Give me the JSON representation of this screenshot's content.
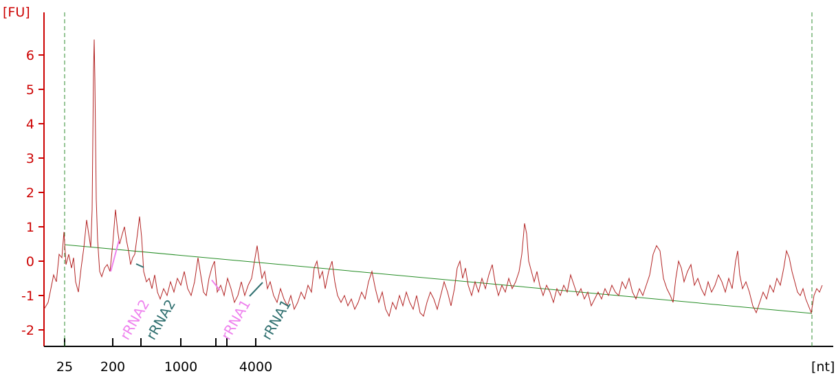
{
  "chart_data": {
    "type": "line",
    "y_unit_label": "[FU]",
    "x_unit_label": "[nt]",
    "yticks": [
      -2,
      -1,
      0,
      1,
      2,
      3,
      4,
      5,
      6
    ],
    "xticks": [
      {
        "x": 25,
        "label": "25"
      },
      {
        "x": 200,
        "label": "200"
      },
      {
        "x": 1000,
        "label": "1000"
      },
      {
        "x": 4000,
        "label": "4000"
      }
    ],
    "xtick_unlabeled": [
      500,
      2000,
      2500
    ],
    "ylim": [
      -2.5,
      7.2
    ],
    "colors": {
      "trace": "#b22222",
      "axis_y": "#cc0000",
      "axis_x": "#000000",
      "baseline": "#228b22",
      "marker_lines": "#2e8b2e",
      "rrna_pink": "#ee82ee",
      "rrna_teal": "#2f6f6f"
    },
    "markers": [
      {
        "x": 25,
        "label": "25-nt marker"
      },
      {
        "x": 17000,
        "label": "end marker"
      }
    ],
    "baseline": {
      "start": [
        25,
        0.48
      ],
      "end": [
        17000,
        -1.52
      ]
    },
    "annotations": [
      {
        "label": "rRNA2",
        "color": "pink",
        "x": 200
      },
      {
        "label": "rRNA2",
        "color": "teal",
        "x": 500
      },
      {
        "label": "rRNA1",
        "color": "pink",
        "x": 2000
      },
      {
        "label": "rRNA1",
        "color": "teal",
        "x": 2500
      }
    ],
    "series": [
      {
        "points": [
          [
            64,
            -1.4
          ],
          [
            70,
            -1.2
          ],
          [
            74,
            -0.8
          ],
          [
            78,
            -0.4
          ],
          [
            82,
            -0.6
          ],
          [
            86,
            0.2
          ],
          [
            90,
            0.1
          ],
          [
            93,
            0.85
          ],
          [
            96,
            -0.1
          ],
          [
            100,
            0.2
          ],
          [
            104,
            -0.2
          ],
          [
            107,
            0.1
          ],
          [
            110,
            -0.6
          ],
          [
            114,
            -0.9
          ],
          [
            118,
            -0.2
          ],
          [
            122,
            0.4
          ],
          [
            126,
            1.2
          ],
          [
            129,
            0.8
          ],
          [
            132,
            0.4
          ],
          [
            134,
            1.5
          ],
          [
            136,
            5.5
          ],
          [
            137,
            6.45
          ],
          [
            138,
            5.3
          ],
          [
            140,
            1.8
          ],
          [
            142,
            0.6
          ],
          [
            145,
            -0.3
          ],
          [
            148,
            -0.45
          ],
          [
            152,
            -0.2
          ],
          [
            156,
            -0.1
          ],
          [
            160,
            -0.3
          ],
          [
            164,
            0.5
          ],
          [
            168,
            1.5
          ],
          [
            171,
            0.9
          ],
          [
            174,
            0.5
          ],
          [
            178,
            0.8
          ],
          [
            181,
            1.0
          ],
          [
            184,
            0.6
          ],
          [
            187,
            0.3
          ],
          [
            190,
            -0.1
          ],
          [
            193,
            0.1
          ],
          [
            196,
            0.2
          ],
          [
            200,
            0.8
          ],
          [
            203,
            1.3
          ],
          [
            206,
            0.7
          ],
          [
            209,
            -0.3
          ],
          [
            213,
            -0.6
          ],
          [
            217,
            -0.5
          ],
          [
            221,
            -0.8
          ],
          [
            225,
            -0.4
          ],
          [
            229,
            -0.9
          ],
          [
            233,
            -1.1
          ],
          [
            238,
            -0.8
          ],
          [
            243,
            -1.0
          ],
          [
            248,
            -0.6
          ],
          [
            253,
            -0.9
          ],
          [
            258,
            -0.5
          ],
          [
            263,
            -0.7
          ],
          [
            268,
            -0.3
          ],
          [
            273,
            -0.8
          ],
          [
            278,
            -1.0
          ],
          [
            283,
            -0.6
          ],
          [
            288,
            0.1
          ],
          [
            292,
            -0.4
          ],
          [
            296,
            -0.9
          ],
          [
            300,
            -1.0
          ],
          [
            304,
            -0.5
          ],
          [
            308,
            -0.2
          ],
          [
            312,
            0.0
          ],
          [
            316,
            -0.9
          ],
          [
            321,
            -0.7
          ],
          [
            326,
            -1.0
          ],
          [
            331,
            -0.5
          ],
          [
            336,
            -0.8
          ],
          [
            341,
            -1.2
          ],
          [
            346,
            -1.0
          ],
          [
            351,
            -0.6
          ],
          [
            356,
            -1.0
          ],
          [
            361,
            -0.7
          ],
          [
            366,
            -0.5
          ],
          [
            371,
            0.1
          ],
          [
            374,
            0.45
          ],
          [
            377,
            0.0
          ],
          [
            381,
            -0.5
          ],
          [
            385,
            -0.3
          ],
          [
            389,
            -0.8
          ],
          [
            393,
            -0.6
          ],
          [
            398,
            -1.0
          ],
          [
            403,
            -1.2
          ],
          [
            408,
            -0.8
          ],
          [
            413,
            -1.1
          ],
          [
            418,
            -1.3
          ],
          [
            423,
            -1.0
          ],
          [
            428,
            -1.4
          ],
          [
            433,
            -1.2
          ],
          [
            438,
            -0.9
          ],
          [
            443,
            -1.1
          ],
          [
            448,
            -0.7
          ],
          [
            453,
            -0.9
          ],
          [
            457,
            -0.2
          ],
          [
            461,
            0.0
          ],
          [
            465,
            -0.5
          ],
          [
            469,
            -0.3
          ],
          [
            473,
            -0.8
          ],
          [
            478,
            -0.3
          ],
          [
            483,
            0.0
          ],
          [
            487,
            -0.6
          ],
          [
            491,
            -1.0
          ],
          [
            496,
            -1.2
          ],
          [
            501,
            -1.0
          ],
          [
            506,
            -1.3
          ],
          [
            511,
            -1.1
          ],
          [
            516,
            -1.4
          ],
          [
            521,
            -1.2
          ],
          [
            526,
            -0.9
          ],
          [
            531,
            -1.1
          ],
          [
            536,
            -0.6
          ],
          [
            541,
            -0.3
          ],
          [
            546,
            -0.8
          ],
          [
            551,
            -1.2
          ],
          [
            556,
            -0.9
          ],
          [
            561,
            -1.4
          ],
          [
            566,
            -1.6
          ],
          [
            571,
            -1.2
          ],
          [
            576,
            -1.4
          ],
          [
            581,
            -1.0
          ],
          [
            586,
            -1.3
          ],
          [
            591,
            -0.9
          ],
          [
            596,
            -1.2
          ],
          [
            601,
            -1.4
          ],
          [
            606,
            -1.0
          ],
          [
            611,
            -1.5
          ],
          [
            616,
            -1.6
          ],
          [
            621,
            -1.2
          ],
          [
            626,
            -0.9
          ],
          [
            631,
            -1.1
          ],
          [
            636,
            -1.4
          ],
          [
            641,
            -1.0
          ],
          [
            646,
            -0.6
          ],
          [
            651,
            -0.9
          ],
          [
            656,
            -1.3
          ],
          [
            661,
            -0.8
          ],
          [
            665,
            -0.2
          ],
          [
            669,
            0.0
          ],
          [
            673,
            -0.5
          ],
          [
            677,
            -0.2
          ],
          [
            681,
            -0.7
          ],
          [
            686,
            -1.0
          ],
          [
            691,
            -0.6
          ],
          [
            696,
            -0.9
          ],
          [
            701,
            -0.5
          ],
          [
            706,
            -0.8
          ],
          [
            711,
            -0.4
          ],
          [
            716,
            -0.1
          ],
          [
            720,
            -0.6
          ],
          [
            725,
            -1.0
          ],
          [
            730,
            -0.7
          ],
          [
            735,
            -0.9
          ],
          [
            740,
            -0.5
          ],
          [
            745,
            -0.8
          ],
          [
            750,
            -0.6
          ],
          [
            755,
            -0.3
          ],
          [
            759,
            0.2
          ],
          [
            763,
            1.1
          ],
          [
            766,
            0.8
          ],
          [
            769,
            0.0
          ],
          [
            773,
            -0.3
          ],
          [
            777,
            -0.6
          ],
          [
            781,
            -0.3
          ],
          [
            785,
            -0.7
          ],
          [
            790,
            -1.0
          ],
          [
            795,
            -0.7
          ],
          [
            800,
            -0.9
          ],
          [
            805,
            -1.2
          ],
          [
            810,
            -0.8
          ],
          [
            815,
            -1.0
          ],
          [
            820,
            -0.7
          ],
          [
            825,
            -0.9
          ],
          [
            830,
            -0.4
          ],
          [
            835,
            -0.7
          ],
          [
            840,
            -1.0
          ],
          [
            845,
            -0.8
          ],
          [
            850,
            -1.1
          ],
          [
            855,
            -0.9
          ],
          [
            860,
            -1.3
          ],
          [
            865,
            -1.1
          ],
          [
            870,
            -0.9
          ],
          [
            875,
            -1.1
          ],
          [
            880,
            -0.8
          ],
          [
            885,
            -1.0
          ],
          [
            890,
            -0.7
          ],
          [
            895,
            -0.9
          ],
          [
            900,
            -1.0
          ],
          [
            905,
            -0.6
          ],
          [
            910,
            -0.8
          ],
          [
            915,
            -0.5
          ],
          [
            920,
            -0.9
          ],
          [
            925,
            -1.1
          ],
          [
            930,
            -0.8
          ],
          [
            935,
            -1.0
          ],
          [
            940,
            -0.7
          ],
          [
            945,
            -0.4
          ],
          [
            950,
            0.2
          ],
          [
            955,
            0.45
          ],
          [
            960,
            0.3
          ],
          [
            965,
            -0.5
          ],
          [
            970,
            -0.8
          ],
          [
            975,
            -1.0
          ],
          [
            979,
            -1.2
          ],
          [
            983,
            -0.5
          ],
          [
            987,
            0.0
          ],
          [
            991,
            -0.2
          ],
          [
            995,
            -0.6
          ],
          [
            1000,
            -0.3
          ],
          [
            1005,
            -0.1
          ],
          [
            1010,
            -0.7
          ],
          [
            1015,
            -0.5
          ],
          [
            1020,
            -0.8
          ],
          [
            1025,
            -1.0
          ],
          [
            1030,
            -0.6
          ],
          [
            1035,
            -0.9
          ],
          [
            1040,
            -0.7
          ],
          [
            1045,
            -0.4
          ],
          [
            1050,
            -0.6
          ],
          [
            1055,
            -0.9
          ],
          [
            1060,
            -0.5
          ],
          [
            1065,
            -0.8
          ],
          [
            1070,
            0.0
          ],
          [
            1073,
            0.3
          ],
          [
            1076,
            -0.4
          ],
          [
            1080,
            -0.8
          ],
          [
            1085,
            -0.6
          ],
          [
            1090,
            -0.9
          ],
          [
            1095,
            -1.3
          ],
          [
            1100,
            -1.5
          ],
          [
            1105,
            -1.2
          ],
          [
            1110,
            -0.9
          ],
          [
            1115,
            -1.1
          ],
          [
            1120,
            -0.7
          ],
          [
            1125,
            -0.9
          ],
          [
            1130,
            -0.5
          ],
          [
            1135,
            -0.7
          ],
          [
            1140,
            -0.2
          ],
          [
            1144,
            0.3
          ],
          [
            1148,
            0.1
          ],
          [
            1152,
            -0.3
          ],
          [
            1156,
            -0.6
          ],
          [
            1160,
            -0.9
          ],
          [
            1164,
            -1.0
          ],
          [
            1168,
            -0.8
          ],
          [
            1172,
            -1.1
          ],
          [
            1176,
            -1.3
          ],
          [
            1180,
            -1.5
          ],
          [
            1184,
            -1.0
          ],
          [
            1188,
            -0.8
          ],
          [
            1192,
            -0.9
          ],
          [
            1196,
            -0.7
          ]
        ]
      }
    ]
  }
}
